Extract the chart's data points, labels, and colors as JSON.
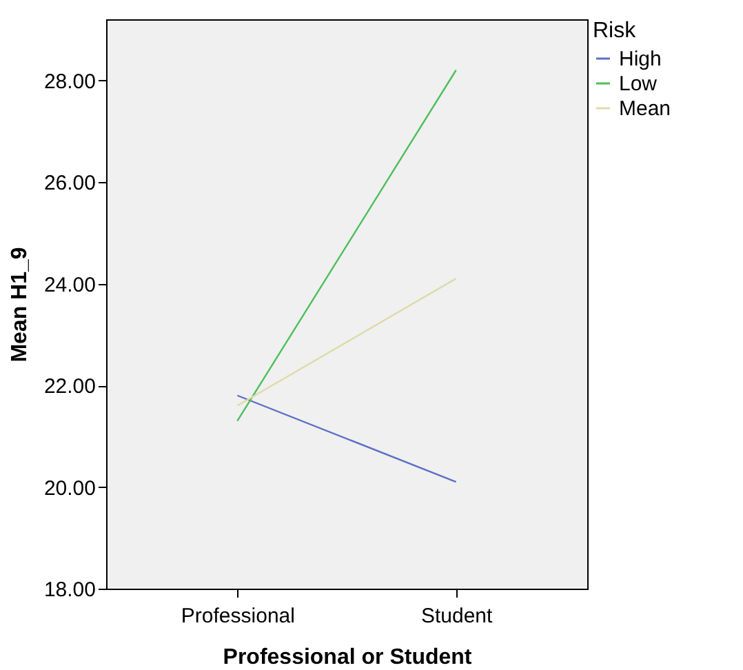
{
  "chart_data": {
    "type": "line",
    "xlabel": "Professional or Student",
    "ylabel": "Mean H1_9",
    "legend_title": "Risk",
    "categories": [
      "Professional",
      "Student"
    ],
    "series": [
      {
        "name": "High",
        "color": "#5b6fc7",
        "values": [
          21.8,
          20.1
        ]
      },
      {
        "name": "Low",
        "color": "#4bbf5b",
        "values": [
          21.3,
          28.2
        ]
      },
      {
        "name": "Mean",
        "color": "#dcdcaa",
        "values": [
          21.6,
          24.1
        ]
      }
    ],
    "ylim": [
      18,
      29.2
    ],
    "yticks": [
      {
        "value": 18,
        "label": "18.00"
      },
      {
        "value": 20,
        "label": "20.00"
      },
      {
        "value": 22,
        "label": "22.00"
      },
      {
        "value": 24,
        "label": "24.00"
      },
      {
        "value": 26,
        "label": "26.00"
      },
      {
        "value": 28,
        "label": "28.00"
      }
    ],
    "grid": false,
    "legend": "top right",
    "marker": "none",
    "line_style": "solid"
  }
}
